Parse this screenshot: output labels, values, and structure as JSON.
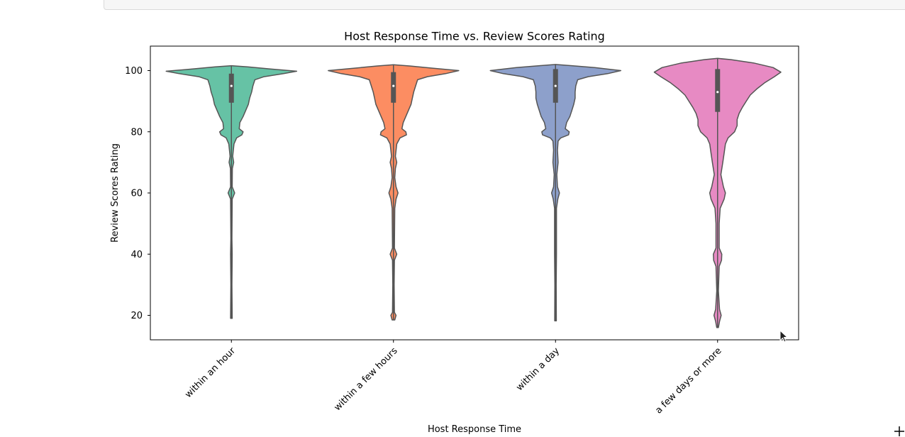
{
  "chart_data": {
    "type": "violin",
    "title": "Host Response Time vs. Review Scores Rating",
    "xlabel": "Host Response Time",
    "ylabel": "Review Scores Rating",
    "ylim": [
      12,
      108
    ],
    "yticks": [
      20,
      40,
      60,
      80,
      100
    ],
    "grid": false,
    "categories": [
      "within an hour",
      "within a few hours",
      "within a day",
      "a few days or more"
    ],
    "colors": [
      "#66c2a5",
      "#fc8d62",
      "#8da0cb",
      "#e78ac3"
    ],
    "outline_color": "#555555",
    "series": [
      {
        "category": "within an hour",
        "color": "#66c2a5",
        "min": 19,
        "q1": 89.5,
        "median": 95,
        "q3": 99,
        "max": 101.5,
        "density": [
          [
            19,
            0.012
          ],
          [
            30,
            0.008
          ],
          [
            40,
            0.012
          ],
          [
            45,
            0.008
          ],
          [
            58,
            0.012
          ],
          [
            60,
            0.05
          ],
          [
            62,
            0.012
          ],
          [
            68,
            0.015
          ],
          [
            70,
            0.035
          ],
          [
            72,
            0.02
          ],
          [
            76,
            0.04
          ],
          [
            78,
            0.08
          ],
          [
            79,
            0.16
          ],
          [
            80,
            0.18
          ],
          [
            81,
            0.12
          ],
          [
            83,
            0.13
          ],
          [
            85,
            0.18
          ],
          [
            87,
            0.22
          ],
          [
            89,
            0.26
          ],
          [
            91,
            0.28
          ],
          [
            93,
            0.31
          ],
          [
            95,
            0.33
          ],
          [
            97,
            0.36
          ],
          [
            98,
            0.5
          ],
          [
            99,
            0.8
          ],
          [
            99.8,
            1.0
          ],
          [
            100.5,
            0.6
          ],
          [
            101.2,
            0.25
          ],
          [
            101.6,
            0.0
          ]
        ]
      },
      {
        "category": "within a few hours",
        "color": "#fc8d62",
        "min": 18.5,
        "q1": 89.5,
        "median": 95,
        "q3": 99.5,
        "max": 101.8,
        "density": [
          [
            18.5,
            0.02
          ],
          [
            20,
            0.04
          ],
          [
            21,
            0.015
          ],
          [
            30,
            0.01
          ],
          [
            38,
            0.015
          ],
          [
            40,
            0.05
          ],
          [
            42,
            0.015
          ],
          [
            55,
            0.02
          ],
          [
            58,
            0.04
          ],
          [
            60,
            0.07
          ],
          [
            62,
            0.04
          ],
          [
            65,
            0.02
          ],
          [
            68,
            0.03
          ],
          [
            70,
            0.05
          ],
          [
            72,
            0.03
          ],
          [
            76,
            0.05
          ],
          [
            78,
            0.1
          ],
          [
            79,
            0.2
          ],
          [
            80,
            0.19
          ],
          [
            81,
            0.13
          ],
          [
            83,
            0.15
          ],
          [
            85,
            0.19
          ],
          [
            87,
            0.23
          ],
          [
            89,
            0.27
          ],
          [
            91,
            0.29
          ],
          [
            93,
            0.31
          ],
          [
            95,
            0.34
          ],
          [
            97,
            0.37
          ],
          [
            98,
            0.52
          ],
          [
            99,
            0.8
          ],
          [
            100,
            1.0
          ],
          [
            100.8,
            0.6
          ],
          [
            101.5,
            0.25
          ],
          [
            101.9,
            0.0
          ]
        ]
      },
      {
        "category": "within a day",
        "color": "#8da0cb",
        "min": 18.2,
        "q1": 89.5,
        "median": 95,
        "q3": 100.5,
        "max": 102,
        "density": [
          [
            18.2,
            0.012
          ],
          [
            30,
            0.01
          ],
          [
            40,
            0.015
          ],
          [
            55,
            0.015
          ],
          [
            58,
            0.035
          ],
          [
            60,
            0.06
          ],
          [
            62,
            0.03
          ],
          [
            66,
            0.02
          ],
          [
            70,
            0.04
          ],
          [
            74,
            0.03
          ],
          [
            77,
            0.04
          ],
          [
            78,
            0.08
          ],
          [
            79,
            0.2
          ],
          [
            80,
            0.21
          ],
          [
            81,
            0.15
          ],
          [
            83,
            0.17
          ],
          [
            85,
            0.22
          ],
          [
            87,
            0.25
          ],
          [
            89,
            0.28
          ],
          [
            91,
            0.3
          ],
          [
            93,
            0.3
          ],
          [
            95,
            0.31
          ],
          [
            97,
            0.34
          ],
          [
            98,
            0.5
          ],
          [
            99,
            0.8
          ],
          [
            100,
            1.0
          ],
          [
            101,
            0.6
          ],
          [
            101.6,
            0.25
          ],
          [
            102,
            0.0
          ]
        ]
      },
      {
        "category": "a few days or more",
        "color": "#e78ac3",
        "min": 16,
        "q1": 86.5,
        "median": 93,
        "q3": 100.5,
        "max": 104,
        "density": [
          [
            16,
            0.012
          ],
          [
            18,
            0.03
          ],
          [
            20,
            0.055
          ],
          [
            22,
            0.03
          ],
          [
            28,
            0.012
          ],
          [
            36,
            0.025
          ],
          [
            38,
            0.06
          ],
          [
            40,
            0.065
          ],
          [
            42,
            0.025
          ],
          [
            50,
            0.025
          ],
          [
            55,
            0.04
          ],
          [
            58,
            0.1
          ],
          [
            60,
            0.12
          ],
          [
            62,
            0.09
          ],
          [
            66,
            0.05
          ],
          [
            70,
            0.08
          ],
          [
            73,
            0.1
          ],
          [
            76,
            0.12
          ],
          [
            78,
            0.16
          ],
          [
            80,
            0.26
          ],
          [
            82,
            0.3
          ],
          [
            84,
            0.3
          ],
          [
            86,
            0.33
          ],
          [
            88,
            0.38
          ],
          [
            90,
            0.44
          ],
          [
            92,
            0.5
          ],
          [
            94,
            0.6
          ],
          [
            96,
            0.72
          ],
          [
            98,
            0.87
          ],
          [
            99.5,
            0.97
          ],
          [
            101,
            0.85
          ],
          [
            102.5,
            0.55
          ],
          [
            103.6,
            0.2
          ],
          [
            104,
            0.0
          ]
        ]
      }
    ]
  }
}
